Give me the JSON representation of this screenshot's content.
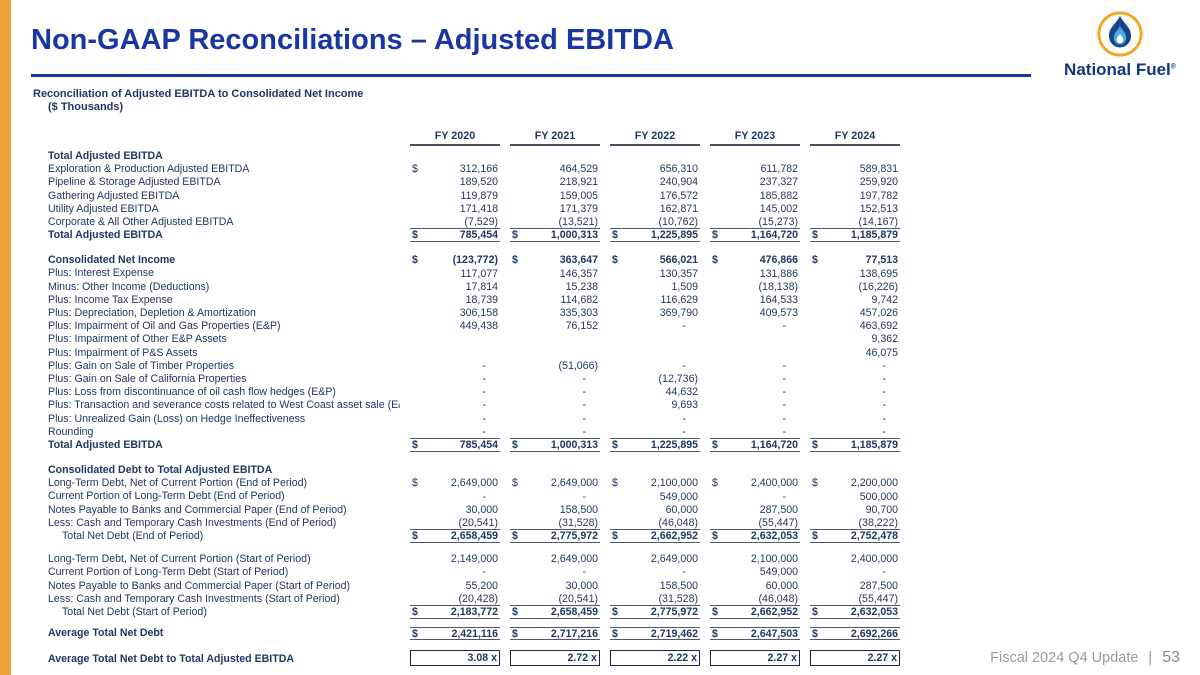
{
  "slide": {
    "title": "Non-GAAP Reconciliations – Adjusted EBITDA",
    "subtitle": "Reconciliation of Adjusted EBITDA to Consolidated Net Income",
    "units": "($ Thousands)",
    "footer_label": "Fiscal 2024 Q4 Update",
    "footer_separator": "|",
    "page_number": "53"
  },
  "logo": {
    "wordmark": "National Fuel",
    "registered": "®",
    "icon": "flame-droplet-in-orange-ring"
  },
  "colors": {
    "accent_orange": "#EDA23B",
    "title_blue": "#1A36A3",
    "table_navy": "#1F3864",
    "footer_gray": "#9a9a9a",
    "logo_orange_ring": "#F5A623",
    "logo_flame_dark": "#16418C",
    "logo_flame_light": "#49AADF"
  },
  "table": {
    "columns": [
      "FY 2020",
      "FY 2021",
      "FY 2022",
      "FY 2023",
      "FY 2024"
    ],
    "rows": [
      {
        "label": "Total Adjusted EBITDA",
        "bold": true,
        "cells": null
      },
      {
        "label": "Exploration & Production Adjusted EBITDA",
        "cells": [
          [
            "$",
            "312,166"
          ],
          [
            "",
            "464,529"
          ],
          [
            "",
            "656,310"
          ],
          [
            "",
            "611,782"
          ],
          [
            "",
            "589,831"
          ]
        ]
      },
      {
        "label": "Pipeline & Storage Adjusted EBITDA",
        "cells": [
          [
            "",
            "189,520"
          ],
          [
            "",
            "218,921"
          ],
          [
            "",
            "240,904"
          ],
          [
            "",
            "237,327"
          ],
          [
            "",
            "259,920"
          ]
        ]
      },
      {
        "label": "Gathering Adjusted EBITDA",
        "cells": [
          [
            "",
            "119,879"
          ],
          [
            "",
            "159,005"
          ],
          [
            "",
            "176,572"
          ],
          [
            "",
            "185,882"
          ],
          [
            "",
            "197,782"
          ]
        ]
      },
      {
        "label": "Utility Adjusted EBITDA",
        "cells": [
          [
            "",
            "171,418"
          ],
          [
            "",
            "171,379"
          ],
          [
            "",
            "162,871"
          ],
          [
            "",
            "145,002"
          ],
          [
            "",
            "152,513"
          ]
        ]
      },
      {
        "label": "Corporate & All Other Adjusted EBITDA",
        "underline": true,
        "cells": [
          [
            "",
            "(7,529)"
          ],
          [
            "",
            "(13,521)"
          ],
          [
            "",
            "(10,762)"
          ],
          [
            "",
            "(15,273)"
          ],
          [
            "",
            "(14,167)"
          ]
        ]
      },
      {
        "label": "Total Adjusted EBITDA",
        "bold": true,
        "underline": true,
        "cells": [
          [
            "$",
            "785,454"
          ],
          [
            "$",
            "1,000,313"
          ],
          [
            "$",
            "1,225,895"
          ],
          [
            "$",
            "1,164,720"
          ],
          [
            "$",
            "1,185,879"
          ]
        ]
      },
      {
        "spacer": 12
      },
      {
        "label": "Consolidated Net Income",
        "bold": true,
        "cells": [
          [
            "$",
            "(123,772)"
          ],
          [
            "$",
            "363,647"
          ],
          [
            "$",
            "566,021"
          ],
          [
            "$",
            "476,866"
          ],
          [
            "$",
            "77,513"
          ]
        ]
      },
      {
        "label": "Plus: Interest Expense",
        "cells": [
          [
            "",
            "117,077"
          ],
          [
            "",
            "146,357"
          ],
          [
            "",
            "130,357"
          ],
          [
            "",
            "131,886"
          ],
          [
            "",
            "138,695"
          ]
        ]
      },
      {
        "label": "Minus:  Other Income (Deductions)",
        "cells": [
          [
            "",
            "17,814"
          ],
          [
            "",
            "15,238"
          ],
          [
            "",
            "1,509"
          ],
          [
            "",
            "(18,138)"
          ],
          [
            "",
            "(16,226)"
          ]
        ]
      },
      {
        "label": "Plus: Income Tax Expense",
        "cells": [
          [
            "",
            "18,739"
          ],
          [
            "",
            "114,682"
          ],
          [
            "",
            "116,629"
          ],
          [
            "",
            "164,533"
          ],
          [
            "",
            "9,742"
          ]
        ]
      },
      {
        "label": "Plus: Depreciation, Depletion & Amortization",
        "cells": [
          [
            "",
            "306,158"
          ],
          [
            "",
            "335,303"
          ],
          [
            "",
            "369,790"
          ],
          [
            "",
            "409,573"
          ],
          [
            "",
            "457,026"
          ]
        ]
      },
      {
        "label": "Plus: Impairment of Oil and Gas Properties (E&P)",
        "cells": [
          [
            "",
            "449,438"
          ],
          [
            "",
            "76,152"
          ],
          [
            "",
            "-"
          ],
          [
            "",
            "-"
          ],
          [
            "",
            "463,692"
          ]
        ]
      },
      {
        "label": "Plus: Impairment of Other E&P Assets",
        "cells": [
          [
            "",
            ""
          ],
          [
            "",
            ""
          ],
          [
            "",
            ""
          ],
          [
            "",
            ""
          ],
          [
            "",
            "9,362"
          ]
        ]
      },
      {
        "label": "Plus: Impairment of P&S Assets",
        "cells": [
          [
            "",
            ""
          ],
          [
            "",
            ""
          ],
          [
            "",
            ""
          ],
          [
            "",
            ""
          ],
          [
            "",
            "46,075"
          ]
        ]
      },
      {
        "label": "Plus: Gain on Sale of Timber Properties",
        "cells": [
          [
            "",
            "-"
          ],
          [
            "",
            "(51,066)"
          ],
          [
            "",
            "-"
          ],
          [
            "",
            "-"
          ],
          [
            "",
            "-"
          ]
        ]
      },
      {
        "label": "Plus: Gain on Sale of California Properties",
        "cells": [
          [
            "",
            "-"
          ],
          [
            "",
            "-"
          ],
          [
            "",
            "(12,736)"
          ],
          [
            "",
            "-"
          ],
          [
            "",
            "-"
          ]
        ]
      },
      {
        "label": "Plus: Loss from discontinuance of oil cash flow hedges (E&P)",
        "cells": [
          [
            "",
            "-"
          ],
          [
            "",
            "-"
          ],
          [
            "",
            "44,632"
          ],
          [
            "",
            "-"
          ],
          [
            "",
            "-"
          ]
        ]
      },
      {
        "label": "Plus: Transaction and severance costs related to West Coast asset sale (E&P",
        "cells": [
          [
            "",
            "-"
          ],
          [
            "",
            "-"
          ],
          [
            "",
            "9,693"
          ],
          [
            "",
            "-"
          ],
          [
            "",
            "-"
          ]
        ]
      },
      {
        "label": "Plus: Unrealized Gain (Loss) on Hedge Ineffectiveness",
        "cells": [
          [
            "",
            "-"
          ],
          [
            "",
            "-"
          ],
          [
            "",
            "-"
          ],
          [
            "",
            "-"
          ],
          [
            "",
            "-"
          ]
        ]
      },
      {
        "label": "Rounding",
        "underline": true,
        "cells": [
          [
            "",
            "-"
          ],
          [
            "",
            "-"
          ],
          [
            "",
            "-"
          ],
          [
            "",
            "-"
          ],
          [
            "",
            "-"
          ]
        ]
      },
      {
        "label": "Total Adjusted EBITDA",
        "bold": true,
        "underline": true,
        "cells": [
          [
            "$",
            "785,454"
          ],
          [
            "$",
            "1,000,313"
          ],
          [
            "$",
            "1,225,895"
          ],
          [
            "$",
            "1,164,720"
          ],
          [
            "$",
            "1,185,879"
          ]
        ]
      },
      {
        "spacer": 12
      },
      {
        "label": "Consolidated Debt to Total Adjusted EBITDA",
        "bold": true,
        "cells": null
      },
      {
        "label": "Long-Term Debt, Net of Current Portion (End of Period)",
        "cells": [
          [
            "$",
            "2,649,000"
          ],
          [
            "$",
            "2,649,000"
          ],
          [
            "$",
            "2,100,000"
          ],
          [
            "$",
            "2,400,000"
          ],
          [
            "$",
            "2,200,000"
          ]
        ]
      },
      {
        "label": "Current Portion of Long-Term Debt (End of Period)",
        "cells": [
          [
            "",
            "-"
          ],
          [
            "",
            "-"
          ],
          [
            "",
            "549,000"
          ],
          [
            "",
            "-"
          ],
          [
            "",
            "500,000"
          ]
        ]
      },
      {
        "label": "Notes Payable to Banks and Commercial Paper (End of Period)",
        "cells": [
          [
            "",
            "30,000"
          ],
          [
            "",
            "158,500"
          ],
          [
            "",
            "60,000"
          ],
          [
            "",
            "287,500"
          ],
          [
            "",
            "90,700"
          ]
        ]
      },
      {
        "label": "Less: Cash and Temporary Cash Investments (End of Period)",
        "underline": true,
        "cells": [
          [
            "",
            "(20,541)"
          ],
          [
            "",
            "(31,528)"
          ],
          [
            "",
            "(46,048)"
          ],
          [
            "",
            "(55,447)"
          ],
          [
            "",
            "(38,222)"
          ]
        ]
      },
      {
        "label": "Total Net Debt (End of Period)",
        "indent": true,
        "boldValues": true,
        "underline": true,
        "cells": [
          [
            "$",
            "2,658,459"
          ],
          [
            "$",
            "2,775,972"
          ],
          [
            "$",
            "2,662,952"
          ],
          [
            "$",
            "2,632,053"
          ],
          [
            "$",
            "2,752,478"
          ]
        ]
      },
      {
        "spacer": 10
      },
      {
        "label": "Long-Term Debt, Net of Current Portion (Start of Period)",
        "cells": [
          [
            "",
            "2,149,000"
          ],
          [
            "",
            "2,649,000"
          ],
          [
            "",
            "2,649,000"
          ],
          [
            "",
            "2,100,000"
          ],
          [
            "",
            "2,400,000"
          ]
        ]
      },
      {
        "label": "Current Portion of Long-Term Debt (Start of Period)",
        "cells": [
          [
            "",
            "-"
          ],
          [
            "",
            "-"
          ],
          [
            "",
            "-"
          ],
          [
            "",
            "549,000"
          ],
          [
            "",
            "-"
          ]
        ]
      },
      {
        "label": "Notes Payable to Banks and Commercial Paper (Start of Period)",
        "cells": [
          [
            "",
            "55,200"
          ],
          [
            "",
            "30,000"
          ],
          [
            "",
            "158,500"
          ],
          [
            "",
            "60,000"
          ],
          [
            "",
            "287,500"
          ]
        ]
      },
      {
        "label": "Less: Cash and Temporary Cash Investments (Start of Period)",
        "underline": true,
        "cells": [
          [
            "",
            "(20,428)"
          ],
          [
            "",
            "(20,541)"
          ],
          [
            "",
            "(31,528)"
          ],
          [
            "",
            "(46,048)"
          ],
          [
            "",
            "(55,447)"
          ]
        ]
      },
      {
        "label": "Total Net Debt (Start of Period)",
        "indent": true,
        "boldValues": true,
        "underline": true,
        "cells": [
          [
            "$",
            "2,183,772"
          ],
          [
            "$",
            "2,658,459"
          ],
          [
            "$",
            "2,775,972"
          ],
          [
            "$",
            "2,662,952"
          ],
          [
            "$",
            "2,632,053"
          ]
        ]
      },
      {
        "spacer": 8
      },
      {
        "label": "Average Total Net Debt",
        "bold": true,
        "topline": true,
        "underline": true,
        "cells": [
          [
            "$",
            "2,421,116"
          ],
          [
            "$",
            "2,717,216"
          ],
          [
            "$",
            "2,719,462"
          ],
          [
            "$",
            "2,647,503"
          ],
          [
            "$",
            "2,692,266"
          ]
        ]
      },
      {
        "spacer": 10
      },
      {
        "label": "Average Total Net Debt to Total Adjusted EBITDA",
        "bold": true,
        "box": true,
        "cells": [
          [
            "",
            "3.08 x"
          ],
          [
            "",
            "2.72 x"
          ],
          [
            "",
            "2.22 x"
          ],
          [
            "",
            "2.27 x"
          ],
          [
            "",
            "2.27 x"
          ]
        ]
      }
    ]
  }
}
